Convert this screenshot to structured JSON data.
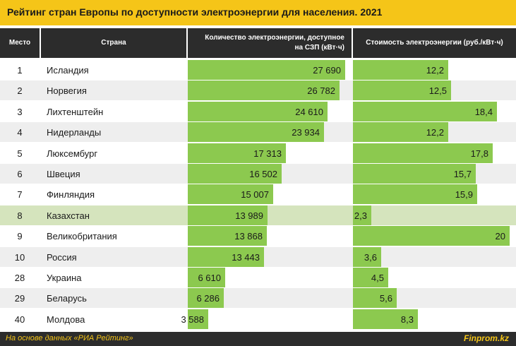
{
  "title": "Рейтинг стран Европы по доступности электроэнергии для населения. 2021",
  "headers": {
    "rank": "Место",
    "country": "Страна",
    "amount_line1": "Количество электроэнергии, доступное",
    "amount_line2": "на СЗП (кВт·ч)",
    "cost": "Стоимость электроэнергии (руб./кВт·ч)"
  },
  "colors": {
    "bar": "#8cc94f",
    "highlight_row": "#d5e4bd",
    "stripe_row": "#eeeeee",
    "title_bg": "#f5c518",
    "header_bg": "#2c2c2c"
  },
  "chart_data": {
    "type": "bar",
    "title": "Рейтинг стран Европы по доступности электроэнергии для населения. 2021",
    "highlight_country": "Казахстан",
    "rows": [
      {
        "rank": "1",
        "country": "Исландия",
        "amount": 27690,
        "amount_label": "27 690",
        "cost": 12.2,
        "cost_label": "12,2"
      },
      {
        "rank": "2",
        "country": "Норвегия",
        "amount": 26782,
        "amount_label": "26 782",
        "cost": 12.5,
        "cost_label": "12,5"
      },
      {
        "rank": "3",
        "country": "Лихтенштейн",
        "amount": 24610,
        "amount_label": "24 610",
        "cost": 18.4,
        "cost_label": "18,4"
      },
      {
        "rank": "4",
        "country": "Нидерланды",
        "amount": 23934,
        "amount_label": "23 934",
        "cost": 12.2,
        "cost_label": "12,2"
      },
      {
        "rank": "5",
        "country": "Люксембург",
        "amount": 17313,
        "amount_label": "17 313",
        "cost": 17.8,
        "cost_label": "17,8"
      },
      {
        "rank": "6",
        "country": "Швеция",
        "amount": 16502,
        "amount_label": "16 502",
        "cost": 15.7,
        "cost_label": "15,7"
      },
      {
        "rank": "7",
        "country": "Финляндия",
        "amount": 15007,
        "amount_label": "15 007",
        "cost": 15.9,
        "cost_label": "15,9"
      },
      {
        "rank": "8",
        "country": "Казахстан",
        "amount": 13989,
        "amount_label": "13 989",
        "cost": 2.3,
        "cost_label": "2,3"
      },
      {
        "rank": "9",
        "country": "Великобритания",
        "amount": 13868,
        "amount_label": "13 868",
        "cost": 20,
        "cost_label": "20"
      },
      {
        "rank": "10",
        "country": "Россия",
        "amount": 13443,
        "amount_label": "13 443",
        "cost": 3.6,
        "cost_label": "3,6"
      },
      {
        "rank": "28",
        "country": "Украина",
        "amount": 6610,
        "amount_label": "6 610",
        "cost": 4.5,
        "cost_label": "4,5"
      },
      {
        "rank": "29",
        "country": "Беларусь",
        "amount": 6286,
        "amount_label": "6 286",
        "cost": 5.6,
        "cost_label": "5,6"
      },
      {
        "rank": "40",
        "country": "Молдова",
        "amount": 3588,
        "amount_label": "3 588",
        "cost": 8.3,
        "cost_label": "8,3"
      }
    ]
  },
  "footer": {
    "note": "На основе данных «РИА Рейтинг»",
    "brand": "Finprom.kz"
  }
}
